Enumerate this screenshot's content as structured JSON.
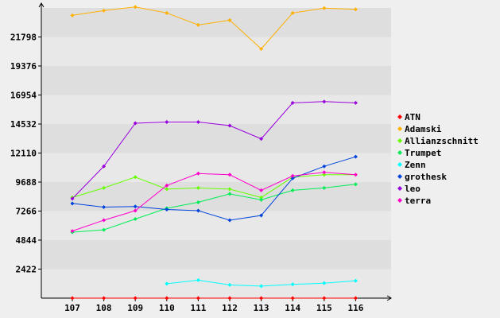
{
  "chart_data": {
    "type": "line",
    "title": "",
    "xlabel": "",
    "ylabel": "",
    "x": [
      "107",
      "108",
      "109",
      "110",
      "111",
      "112",
      "113",
      "114",
      "115",
      "116"
    ],
    "y_ticks": [
      "2422",
      "4844",
      "7266",
      "9688",
      "12110",
      "14532",
      "16954",
      "19376",
      "21798"
    ],
    "ylim": [
      0,
      24220
    ],
    "grid": "horizontal bands",
    "legend_position": "right",
    "series": [
      {
        "name": "ATN",
        "color": "#ff0000",
        "values": [
          0,
          0,
          0,
          0,
          0,
          0,
          0,
          0,
          0,
          0
        ]
      },
      {
        "name": "Adamski",
        "color": "#ffb000",
        "values": [
          23600,
          24000,
          24300,
          23800,
          22800,
          23200,
          20800,
          23800,
          24200,
          24100
        ]
      },
      {
        "name": "Allianzschnitt",
        "color": "#66ff00",
        "values": [
          8400,
          9200,
          10100,
          9100,
          9200,
          9100,
          8400,
          10100,
          10300,
          10300
        ]
      },
      {
        "name": "Trumpet",
        "color": "#00ee55",
        "values": [
          5500,
          5700,
          6600,
          7500,
          8000,
          8700,
          8200,
          9000,
          9200,
          9500
        ]
      },
      {
        "name": "Zenn",
        "color": "#00ffff",
        "values": [
          null,
          null,
          null,
          1200,
          1500,
          1100,
          1000,
          1150,
          1250,
          1450
        ]
      },
      {
        "name": "grothesk",
        "color": "#0044dd",
        "values": [
          7900,
          7600,
          7650,
          7400,
          7300,
          6500,
          6900,
          10000,
          11000,
          11800
        ]
      },
      {
        "name": "leo",
        "color": "#9900dd",
        "values": [
          8300,
          11000,
          14600,
          14700,
          14700,
          14400,
          13300,
          16300,
          16400,
          16300
        ]
      },
      {
        "name": "terra",
        "color": "#ff00cc",
        "values": [
          5600,
          6500,
          7300,
          9400,
          10400,
          10300,
          9000,
          10200,
          10500,
          10300
        ]
      }
    ]
  }
}
